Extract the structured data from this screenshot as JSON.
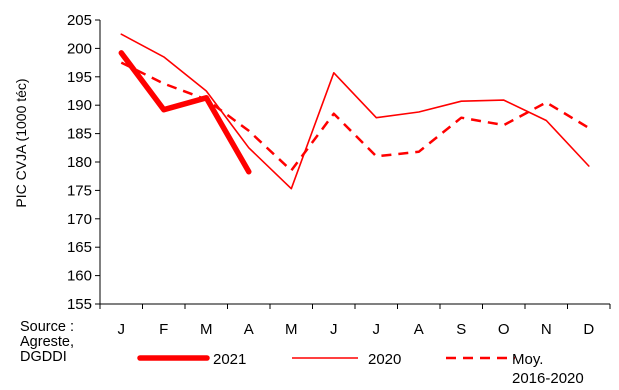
{
  "source": {
    "label": "Source :",
    "line1": "Agreste,",
    "line2": "DGDDI"
  },
  "chart_data": {
    "type": "line",
    "ylabel": "PIC  CVJA (1000 téc)",
    "ylim": [
      155,
      205
    ],
    "yticks": [
      155,
      160,
      165,
      170,
      175,
      180,
      185,
      190,
      195,
      200,
      205
    ],
    "categories": [
      "J",
      "F",
      "M",
      "A",
      "M",
      "J",
      "J",
      "A",
      "S",
      "O",
      "N",
      "D"
    ],
    "series": [
      {
        "name": "2021",
        "color": "#ff0000",
        "style": "thick",
        "values": [
          199.2,
          189.2,
          191.3,
          178.3,
          null,
          null,
          null,
          null,
          null,
          null,
          null,
          null
        ]
      },
      {
        "name": "2020",
        "color": "#ff0000",
        "style": "thin",
        "values": [
          202.5,
          198.5,
          192.5,
          182.5,
          175.3,
          195.7,
          187.8,
          188.8,
          190.7,
          190.9,
          187.3,
          179.3
        ]
      },
      {
        "name": "Moy.\n2016-2020",
        "color": "#ff0000",
        "style": "dashed",
        "values": [
          197.5,
          193.8,
          191.0,
          185.5,
          178.5,
          188.5,
          181.0,
          181.8,
          187.8,
          186.5,
          190.5,
          186.0
        ]
      }
    ],
    "grid": false,
    "legend": "bottom"
  }
}
